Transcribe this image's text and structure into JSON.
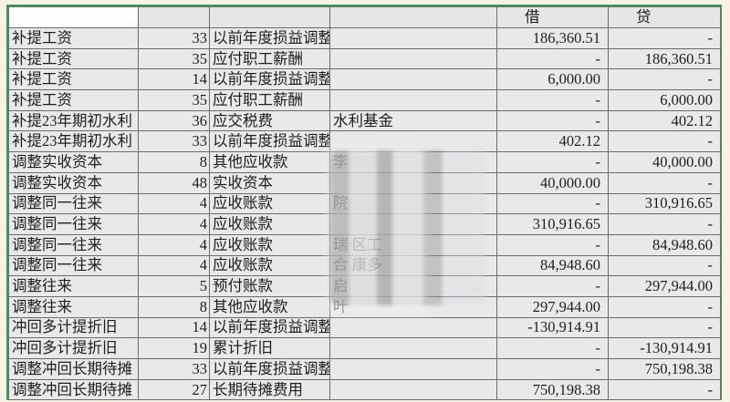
{
  "header": {
    "debit": "借",
    "credit": "贷"
  },
  "rows": [
    {
      "summary": "补提工资",
      "code": "33",
      "account": "以前年度损益调整",
      "sub": "",
      "debit": "186,360.51",
      "credit": "-"
    },
    {
      "summary": "补提工资",
      "code": "35",
      "account": "应付职工薪酬",
      "sub": "",
      "debit": "-",
      "credit": "186,360.51"
    },
    {
      "summary": "补提工资",
      "code": "14",
      "account": "以前年度损益调整",
      "sub": "",
      "debit": "6,000.00",
      "credit": "-"
    },
    {
      "summary": "补提工资",
      "code": "35",
      "account": "应付职工薪酬",
      "sub": "",
      "debit": "-",
      "credit": "6,000.00"
    },
    {
      "summary": "补提23年期初水利",
      "code": "36",
      "account": "应交税费",
      "sub": "水利基金",
      "debit": "-",
      "credit": "402.12"
    },
    {
      "summary": "补提23年期初水利",
      "code": "33",
      "account": "以前年度损益调整",
      "sub": "",
      "debit": "402.12",
      "credit": "-"
    },
    {
      "summary": "调整实收资本",
      "code": "8",
      "account": "其他应收款",
      "sub": "李",
      "debit": "-",
      "credit": "40,000.00"
    },
    {
      "summary": "调整实收资本",
      "code": "48",
      "account": "实收资本",
      "sub": "",
      "debit": "40,000.00",
      "credit": "-"
    },
    {
      "summary": "调整同一往来",
      "code": "4",
      "account": "应收账款",
      "sub": "院",
      "debit": "-",
      "credit": "310,916.65"
    },
    {
      "summary": "调整同一往来",
      "code": "4",
      "account": "应收账款",
      "sub": "",
      "debit": "310,916.65",
      "credit": "-"
    },
    {
      "summary": "调整同一往来",
      "code": "4",
      "account": "应收账款",
      "sub": "瑞 区工",
      "debit": "-",
      "credit": "84,948.60"
    },
    {
      "summary": "调整同一往来",
      "code": "4",
      "account": "应收账款",
      "sub": "合 康多",
      "debit": "84,948.60",
      "credit": "-"
    },
    {
      "summary": "调整往来",
      "code": "5",
      "account": "预付账款",
      "sub": "启",
      "debit": "-",
      "credit": "297,944.00"
    },
    {
      "summary": "调整往来",
      "code": "8",
      "account": "其他应收款",
      "sub": "叶",
      "debit": "297,944.00",
      "credit": "-"
    },
    {
      "summary": "冲回多计提折旧",
      "code": "14",
      "account": "以前年度损益调整",
      "sub": "",
      "debit": "-130,914.91",
      "credit": "-"
    },
    {
      "summary": "冲回多计提折旧",
      "code": "19",
      "account": "累计折旧",
      "sub": "",
      "debit": "-",
      "credit": "-130,914.91"
    },
    {
      "summary": "调整冲回长期待摊",
      "code": "33",
      "account": "以前年度损益调整",
      "sub": "",
      "debit": "-",
      "credit": "750,198.38"
    },
    {
      "summary": "调整冲回长期待摊",
      "code": "27",
      "account": "长期待摊费用",
      "sub": "",
      "debit": "750,198.38",
      "credit": "-"
    }
  ]
}
